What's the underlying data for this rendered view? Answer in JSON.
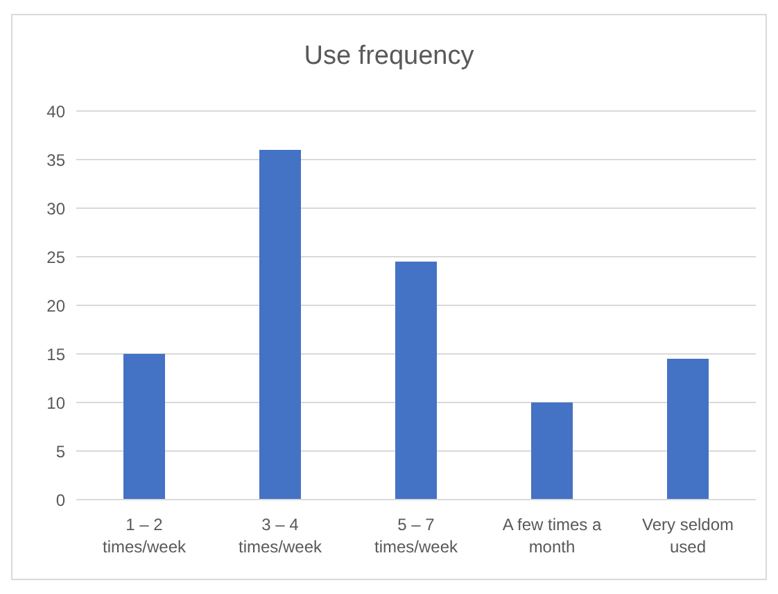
{
  "chart_data": {
    "type": "bar",
    "title": "Use frequency",
    "categories": [
      "1 – 2 times/week",
      "3 – 4 times/week",
      "5 – 7 times/week",
      "A few times a month",
      "Very seldom used"
    ],
    "values": [
      15,
      36,
      24.5,
      10,
      14.5
    ],
    "color": "#4472c4",
    "ylim": [
      0,
      40
    ],
    "yticks": [
      0,
      5,
      10,
      15,
      20,
      25,
      30,
      35,
      40
    ],
    "grid": "y"
  }
}
